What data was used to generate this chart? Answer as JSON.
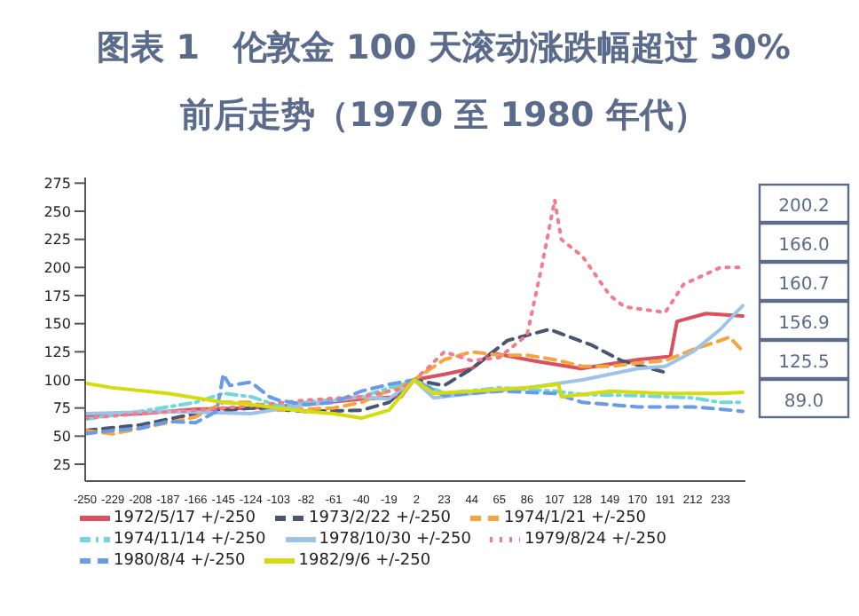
{
  "chart_data": {
    "type": "line",
    "title": "图表 1　伦敦金 100 天滚动涨跌幅超过 30%",
    "subtitle": "前后走势（1970 至 1980 年代）",
    "xlim": [
      -250,
      252
    ],
    "xticks": [
      -250,
      -229,
      -208,
      -187,
      -166,
      -145,
      -124,
      -103,
      -82,
      -61,
      -40,
      -19,
      2,
      23,
      44,
      65,
      86,
      107,
      128,
      149,
      170,
      191,
      212,
      233
    ],
    "ylim": [
      10,
      280
    ],
    "yticks": [
      25,
      50,
      75,
      100,
      125,
      150,
      175,
      200,
      225,
      250,
      275
    ],
    "grid": false,
    "legend": "bottom",
    "marker": "none",
    "series": [
      {
        "name": "1972/5/17 +/-250",
        "color": "#d9505f",
        "line_style": "solid",
        "x": [
          -250,
          -208,
          -166,
          -124,
          -82,
          -40,
          -10,
          0,
          23,
          44,
          59,
          91,
          127,
          170,
          195,
          200,
          222,
          250
        ],
        "values": [
          68,
          70,
          74,
          75,
          78,
          83,
          85,
          100,
          105,
          110,
          124,
          117,
          110,
          118,
          121,
          152,
          159,
          156.9
        ]
      },
      {
        "name": "1973/2/22 +/-250",
        "color": "#4a5670",
        "line_style": "dashed",
        "x": [
          -250,
          -208,
          -166,
          -124,
          -82,
          -40,
          -19,
          0,
          23,
          44,
          71,
          103,
          135,
          158,
          190
        ],
        "values": [
          55,
          60,
          70,
          75,
          72,
          73,
          80,
          100,
          95,
          110,
          135,
          145,
          131,
          117,
          107
        ]
      },
      {
        "name": "1974/1/21 +/-250",
        "color": "#f5a53c",
        "line_style": "dashed",
        "x": [
          -250,
          -229,
          -208,
          -187,
          -166,
          -145,
          -124,
          -103,
          -61,
          -40,
          0,
          23,
          44,
          65,
          86,
          107,
          128,
          149,
          170,
          191,
          212,
          233,
          240,
          250
        ],
        "values": [
          55,
          52,
          57,
          62,
          67,
          80,
          80,
          73,
          75,
          80,
          100,
          118,
          125,
          122,
          122,
          118,
          112,
          112,
          115,
          117,
          127,
          135,
          138,
          125.5
        ]
      },
      {
        "name": "1974/11/14 +/-250",
        "color": "#6ed8dc",
        "line_style": "dashdot",
        "x": [
          -250,
          -208,
          -166,
          -145,
          -124,
          -103,
          -82,
          -40,
          0,
          23,
          65,
          107,
          128,
          170,
          212,
          233,
          250
        ],
        "values": [
          65,
          72,
          80,
          88,
          85,
          77,
          80,
          85,
          100,
          88,
          93,
          90,
          87,
          86,
          84,
          80,
          80
        ]
      },
      {
        "name": "1978/10/30 +/-250",
        "color": "#9ec3e6",
        "line_style": "solid",
        "x": [
          -250,
          -187,
          -124,
          -82,
          -40,
          -19,
          0,
          15,
          44,
          86,
          128,
          170,
          191,
          212,
          233,
          245,
          250
        ],
        "values": [
          70,
          72,
          70,
          78,
          85,
          83,
          100,
          84,
          88,
          93,
          100,
          110,
          112,
          125,
          145,
          160,
          166
        ]
      },
      {
        "name": "1979/8/24 +/-250",
        "color": "#f47b8c",
        "line_style": "dotted",
        "x": [
          -250,
          -208,
          -166,
          -124,
          -82,
          -40,
          -10,
          0,
          10,
          23,
          44,
          65,
          86,
          97,
          107,
          112,
          128,
          149,
          160,
          191,
          205,
          233,
          250
        ],
        "values": [
          66,
          70,
          73,
          77,
          82,
          85,
          92,
          100,
          110,
          125,
          117,
          120,
          140,
          200,
          260,
          225,
          210,
          175,
          165,
          160,
          185,
          200,
          200.2
        ]
      },
      {
        "name": "1980/8/4 +/-250",
        "color": "#6a9be8",
        "line_style": "dashed",
        "x": [
          -250,
          -229,
          -208,
          -187,
          -166,
          -150,
          -145,
          -140,
          -124,
          -110,
          -103,
          -82,
          -61,
          -40,
          -19,
          0,
          23,
          65,
          107,
          128,
          170,
          212,
          233,
          250
        ],
        "values": [
          52,
          55,
          57,
          63,
          62,
          72,
          105,
          95,
          98,
          85,
          82,
          78,
          80,
          90,
          96,
          100,
          86,
          90,
          88,
          80,
          76,
          76,
          74,
          72
        ]
      },
      {
        "name": "1982/9/6 +/-250",
        "color": "#d4dc10",
        "line_style": "solid",
        "x": [
          -250,
          -229,
          -187,
          -145,
          -124,
          -103,
          -82,
          -61,
          -40,
          -19,
          0,
          15,
          44,
          86,
          110,
          112,
          149,
          191,
          233,
          250
        ],
        "values": [
          97,
          93,
          88,
          80,
          78,
          75,
          72,
          70,
          66,
          73,
          100,
          88,
          90,
          93,
          96,
          85,
          90,
          88,
          88,
          89
        ]
      }
    ],
    "annotations": [
      "200.2",
      "166.0",
      "160.7",
      "156.9",
      "125.5",
      "89.0"
    ]
  }
}
